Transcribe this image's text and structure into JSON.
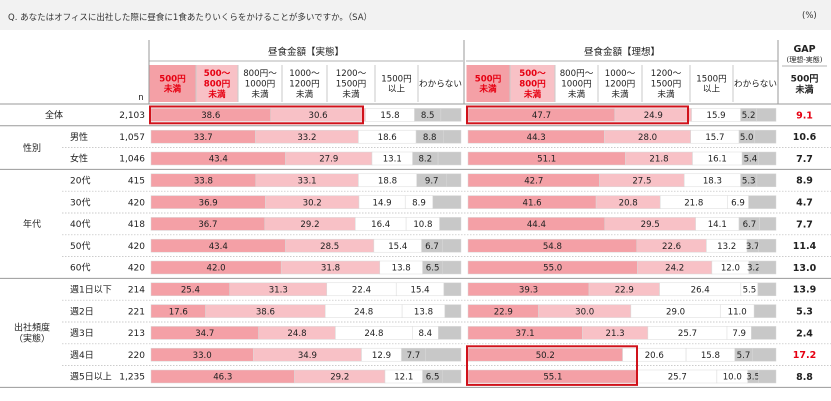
{
  "question": "Q. あなたはオフィスに出社した際に昼食に1食あたりいくらをかけることが多いですか。（SA）",
  "unit": "(%)",
  "n_label": "n",
  "colors": {
    "seg": [
      "#f4a0a6",
      "#f8c1c6",
      "#fce0e3",
      "#ffffff",
      "#ffffff",
      "#c8c8c8"
    ],
    "highlight": "#d0121b",
    "red_text": "#e60012"
  },
  "chart_data": {
    "type": "bar",
    "stacked": true,
    "group_actual": "昼食金額【実態】",
    "group_ideal": "昼食金額【理想】",
    "categories": [
      "500円\n未満",
      "500～\n800円\n未満",
      "800円～\n1000円\n未満",
      "1000～\n1200円\n未満",
      "1200～\n1500円\n未満",
      "1500円\n以上",
      "わからない"
    ],
    "gap_header": "GAP",
    "gap_subheader": "(理想-実態)",
    "gap_col_label": "500円\n未満",
    "sections": [
      {
        "label": "",
        "rows": [
          0
        ]
      },
      {
        "label": "性別",
        "rows": [
          1,
          2
        ]
      },
      {
        "label": "年代",
        "rows": [
          3,
          4,
          5,
          6,
          7
        ]
      },
      {
        "label": "出社頻度\n（実態）",
        "rows": [
          8,
          9,
          10,
          11,
          12
        ]
      }
    ],
    "rows": [
      {
        "label": "全体",
        "n": "2,103",
        "actual": [
          38.6,
          30.6,
          null,
          null,
          15.8,
          8.5,
          null
        ],
        "ideal": [
          47.7,
          24.9,
          null,
          null,
          15.9,
          5.2,
          null
        ],
        "gap": "9.1",
        "gap_red": true
      },
      {
        "label": "男性",
        "n": "1,057",
        "actual": [
          33.7,
          33.2,
          null,
          null,
          18.6,
          8.8,
          null
        ],
        "ideal": [
          44.3,
          28.0,
          null,
          null,
          15.7,
          5.0,
          null
        ],
        "gap": "10.6",
        "gap_red": false
      },
      {
        "label": "女性",
        "n": "1,046",
        "actual": [
          43.4,
          27.9,
          null,
          null,
          13.1,
          8.2,
          null
        ],
        "ideal": [
          51.1,
          21.8,
          null,
          null,
          16.1,
          5.4,
          null
        ],
        "gap": "7.7",
        "gap_red": false
      },
      {
        "label": "20代",
        "n": "415",
        "actual": [
          33.8,
          33.1,
          null,
          null,
          18.8,
          9.7,
          null
        ],
        "ideal": [
          42.7,
          27.5,
          null,
          null,
          18.3,
          5.3,
          null
        ],
        "gap": "8.9",
        "gap_red": false
      },
      {
        "label": "30代",
        "n": "420",
        "actual": [
          36.9,
          30.2,
          null,
          14.9,
          8.9,
          null,
          null
        ],
        "ideal": [
          41.6,
          20.8,
          null,
          21.8,
          6.9,
          null,
          null
        ],
        "gap": "4.7",
        "gap_red": false
      },
      {
        "label": "40代",
        "n": "418",
        "actual": [
          36.7,
          29.2,
          null,
          16.4,
          10.8,
          null,
          null
        ],
        "ideal": [
          44.4,
          29.5,
          null,
          null,
          14.1,
          6.7,
          null
        ],
        "gap": "7.7",
        "gap_red": false
      },
      {
        "label": "50代",
        "n": "420",
        "actual": [
          43.4,
          28.5,
          null,
          null,
          15.4,
          6.7,
          null
        ],
        "ideal": [
          54.8,
          22.6,
          null,
          null,
          13.2,
          3.7,
          null
        ],
        "gap": "11.4",
        "gap_red": false
      },
      {
        "label": "60代",
        "n": "420",
        "actual": [
          42.0,
          31.8,
          null,
          null,
          13.8,
          6.5,
          null
        ],
        "ideal": [
          55.0,
          24.2,
          null,
          null,
          12.0,
          3.2,
          null
        ],
        "gap": "13.0",
        "gap_red": false
      },
      {
        "label": "週1日以下",
        "n": "214",
        "actual": [
          25.4,
          31.3,
          null,
          22.4,
          15.4,
          null,
          null
        ],
        "ideal": [
          39.3,
          22.9,
          null,
          26.4,
          5.5,
          null,
          null
        ],
        "gap": "13.9",
        "gap_red": false
      },
      {
        "label": "週2日",
        "n": "221",
        "actual": [
          17.6,
          38.6,
          null,
          24.8,
          13.8,
          null,
          null
        ],
        "ideal": [
          22.9,
          30.0,
          null,
          29.0,
          11.0,
          null,
          null
        ],
        "gap": "5.3",
        "gap_red": false
      },
      {
        "label": "週3日",
        "n": "213",
        "actual": [
          34.7,
          24.8,
          null,
          24.8,
          8.4,
          null,
          null
        ],
        "ideal": [
          37.1,
          21.3,
          null,
          25.7,
          7.9,
          null,
          null
        ],
        "gap": "2.4",
        "gap_red": false
      },
      {
        "label": "週4日",
        "n": "220",
        "actual": [
          33.0,
          34.9,
          null,
          null,
          12.9,
          7.7,
          null
        ],
        "ideal": [
          50.2,
          null,
          null,
          20.6,
          15.8,
          5.7,
          null
        ],
        "gap": "17.2",
        "gap_red": true
      },
      {
        "label": "週5日以上",
        "n": "1,235",
        "actual": [
          46.3,
          29.2,
          null,
          null,
          12.1,
          6.5,
          null
        ],
        "ideal": [
          55.1,
          null,
          null,
          25.7,
          10.0,
          3.5,
          null
        ],
        "gap": "8.8",
        "gap_red": false
      }
    ]
  }
}
